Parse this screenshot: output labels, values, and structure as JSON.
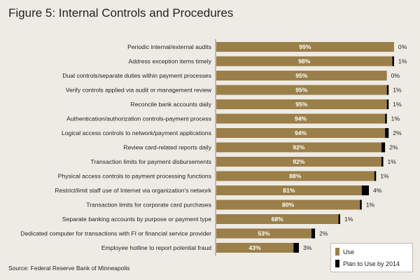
{
  "chart_data": {
    "type": "bar",
    "orientation": "horizontal",
    "stacked": true,
    "title": "Figure 5: Internal Controls and Procedures",
    "source": "Source: Federal Reserve Bank of Minneapolis",
    "categories": [
      "Periodic internal/external audits",
      "Address exception items timely",
      "Dual controls/separate duties within payment processes",
      "Verify controls applied via audit or management review",
      "Reconcile bank accounts daily",
      "Authentication/authorization controls-payment process",
      "Logical access controls to network/payment applications",
      "Review card-related reports daily",
      "Transaction limits for payment disbursements",
      "Physical access controls to payment processing functions",
      "Restrict/limit staff use of Internet via organization's network",
      "Transaction limits for corporate card purchases",
      "Separate banking accounts by purpose or payment type",
      "Dedicated computer for transactions with FI or financial service provider",
      "Employee hotline to report potential fraud"
    ],
    "series": [
      {
        "name": "Use",
        "color": "#9b7f49",
        "values": [
          99,
          98,
          95,
          95,
          95,
          94,
          94,
          92,
          92,
          88,
          81,
          80,
          68,
          53,
          43
        ]
      },
      {
        "name": "Plan to Use by 2014",
        "color": "#000000",
        "values": [
          0,
          1,
          0,
          1,
          1,
          1,
          2,
          2,
          1,
          1,
          4,
          1,
          1,
          2,
          3
        ]
      }
    ],
    "unit": "%",
    "xlim": [
      0,
      100
    ],
    "grid": false,
    "legend_position": "bottom-right"
  }
}
